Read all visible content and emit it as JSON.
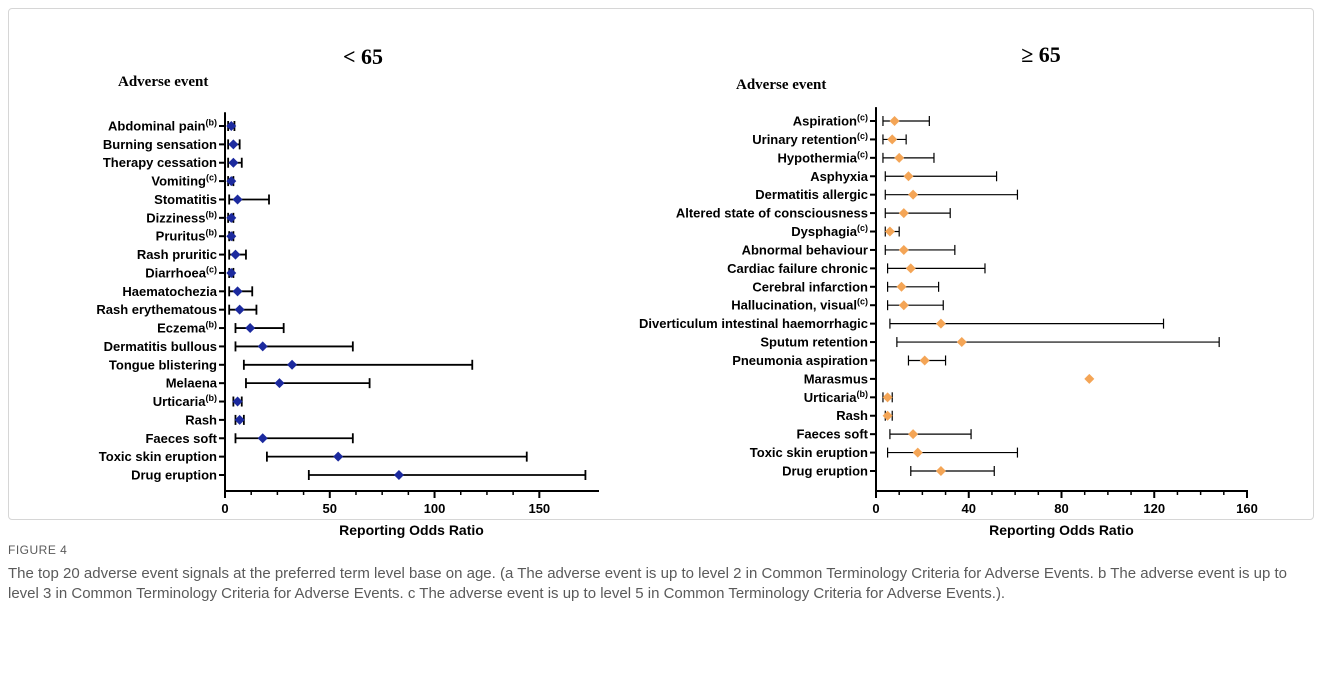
{
  "figure": {
    "label": "FIGURE 4",
    "caption": "The top 20 adverse event signals at the preferred term level base on age. (a The adverse event is up to level 2 in Common Terminology Criteria for Adverse Events. b The adverse event is up to level 3 in Common Terminology Criteria for Adverse Events. c The adverse event is up to level 5 in Common Terminology Criteria for Adverse Events.)."
  },
  "chart_data": [
    {
      "type": "scatter",
      "title": "< 65",
      "category_heading": "Adverse event",
      "xlabel": "Reporting Odds Ratio",
      "xlim": [
        0,
        178
      ],
      "xticks": [
        0,
        50,
        100,
        150
      ],
      "grid": false,
      "color": "#1c2a9e",
      "marker": "diamond",
      "rows": [
        {
          "label": "Abdominal pain",
          "sup": "(b)",
          "value": 3,
          "lo": 1.5,
          "hi": 4.5
        },
        {
          "label": "Burning sensation",
          "sup": "",
          "value": 4,
          "lo": 1.5,
          "hi": 7
        },
        {
          "label": "Therapy cessation",
          "sup": "",
          "value": 4,
          "lo": 1.5,
          "hi": 8
        },
        {
          "label": "Vomiting",
          "sup": "(c)",
          "value": 3,
          "lo": 1.5,
          "hi": 4
        },
        {
          "label": "Stomatitis",
          "sup": "",
          "value": 6,
          "lo": 2,
          "hi": 21
        },
        {
          "label": "Dizziness",
          "sup": "(b)",
          "value": 3,
          "lo": 1.5,
          "hi": 4
        },
        {
          "label": "Pruritus",
          "sup": "(b)",
          "value": 3,
          "lo": 2,
          "hi": 4
        },
        {
          "label": "Rash pruritic",
          "sup": "",
          "value": 5,
          "lo": 2,
          "hi": 10
        },
        {
          "label": "Diarrhoea",
          "sup": "(c)",
          "value": 3,
          "lo": 2,
          "hi": 4
        },
        {
          "label": "Haematochezia",
          "sup": "",
          "value": 6,
          "lo": 2,
          "hi": 13
        },
        {
          "label": "Rash erythematous",
          "sup": "",
          "value": 7,
          "lo": 2,
          "hi": 15
        },
        {
          "label": "Eczema",
          "sup": "(b)",
          "value": 12,
          "lo": 5,
          "hi": 28
        },
        {
          "label": "Dermatitis bullous",
          "sup": "",
          "value": 18,
          "lo": 5,
          "hi": 61
        },
        {
          "label": "Tongue blistering",
          "sup": "",
          "value": 32,
          "lo": 9,
          "hi": 118
        },
        {
          "label": "Melaena",
          "sup": "",
          "value": 26,
          "lo": 10,
          "hi": 69
        },
        {
          "label": "Urticaria",
          "sup": "(b)",
          "value": 6,
          "lo": 4,
          "hi": 8
        },
        {
          "label": "Rash",
          "sup": "",
          "value": 7,
          "lo": 5,
          "hi": 9
        },
        {
          "label": "Faeces soft",
          "sup": "",
          "value": 18,
          "lo": 5,
          "hi": 61
        },
        {
          "label": "Toxic skin eruption",
          "sup": "",
          "value": 54,
          "lo": 20,
          "hi": 144
        },
        {
          "label": "Drug eruption",
          "sup": "",
          "value": 83,
          "lo": 40,
          "hi": 172
        }
      ]
    },
    {
      "type": "scatter",
      "title": "≥ 65",
      "category_heading": "Adverse event",
      "xlabel": "Reporting Odds Ratio",
      "xlim": [
        0,
        160
      ],
      "xticks": [
        0,
        40,
        80,
        120,
        160
      ],
      "grid": false,
      "color": "#f4a556",
      "marker": "diamond",
      "rows": [
        {
          "label": "Aspiration",
          "sup": "(c)",
          "value": 8,
          "lo": 3,
          "hi": 23
        },
        {
          "label": "Urinary retention",
          "sup": "(c)",
          "value": 7,
          "lo": 3,
          "hi": 13
        },
        {
          "label": "Hypothermia",
          "sup": "(c)",
          "value": 10,
          "lo": 3,
          "hi": 25
        },
        {
          "label": "Asphyxia",
          "sup": "",
          "value": 14,
          "lo": 4,
          "hi": 52
        },
        {
          "label": "Dermatitis allergic",
          "sup": "",
          "value": 16,
          "lo": 4,
          "hi": 61
        },
        {
          "label": "Altered state of consciousness",
          "sup": "",
          "value": 12,
          "lo": 4,
          "hi": 32
        },
        {
          "label": "Dysphagia",
          "sup": "(c)",
          "value": 6,
          "lo": 4,
          "hi": 10
        },
        {
          "label": "Abnormal behaviour",
          "sup": "",
          "value": 12,
          "lo": 4,
          "hi": 34
        },
        {
          "label": "Cardiac failure chronic",
          "sup": "",
          "value": 15,
          "lo": 5,
          "hi": 47
        },
        {
          "label": "Cerebral infarction",
          "sup": "",
          "value": 11,
          "lo": 5,
          "hi": 27
        },
        {
          "label": "Hallucination, visual",
          "sup": "(c)",
          "value": 12,
          "lo": 5,
          "hi": 29
        },
        {
          "label": "Diverticulum intestinal haemorrhagic",
          "sup": "",
          "value": 28,
          "lo": 6,
          "hi": 124
        },
        {
          "label": "Sputum retention",
          "sup": "",
          "value": 37,
          "lo": 9,
          "hi": 148
        },
        {
          "label": "Pneumonia aspiration",
          "sup": "",
          "value": 21,
          "lo": 14,
          "hi": 30
        },
        {
          "label": "Marasmus",
          "sup": "",
          "value": 92
        },
        {
          "label": "Urticaria",
          "sup": "(b)",
          "value": 5,
          "lo": 3,
          "hi": 7
        },
        {
          "label": "Rash",
          "sup": "",
          "value": 5,
          "lo": 4,
          "hi": 7
        },
        {
          "label": "Faeces soft",
          "sup": "",
          "value": 16,
          "lo": 6,
          "hi": 41
        },
        {
          "label": "Toxic skin eruption",
          "sup": "",
          "value": 18,
          "lo": 5,
          "hi": 61
        },
        {
          "label": "Drug eruption",
          "sup": "",
          "value": 28,
          "lo": 15,
          "hi": 51
        }
      ]
    }
  ]
}
